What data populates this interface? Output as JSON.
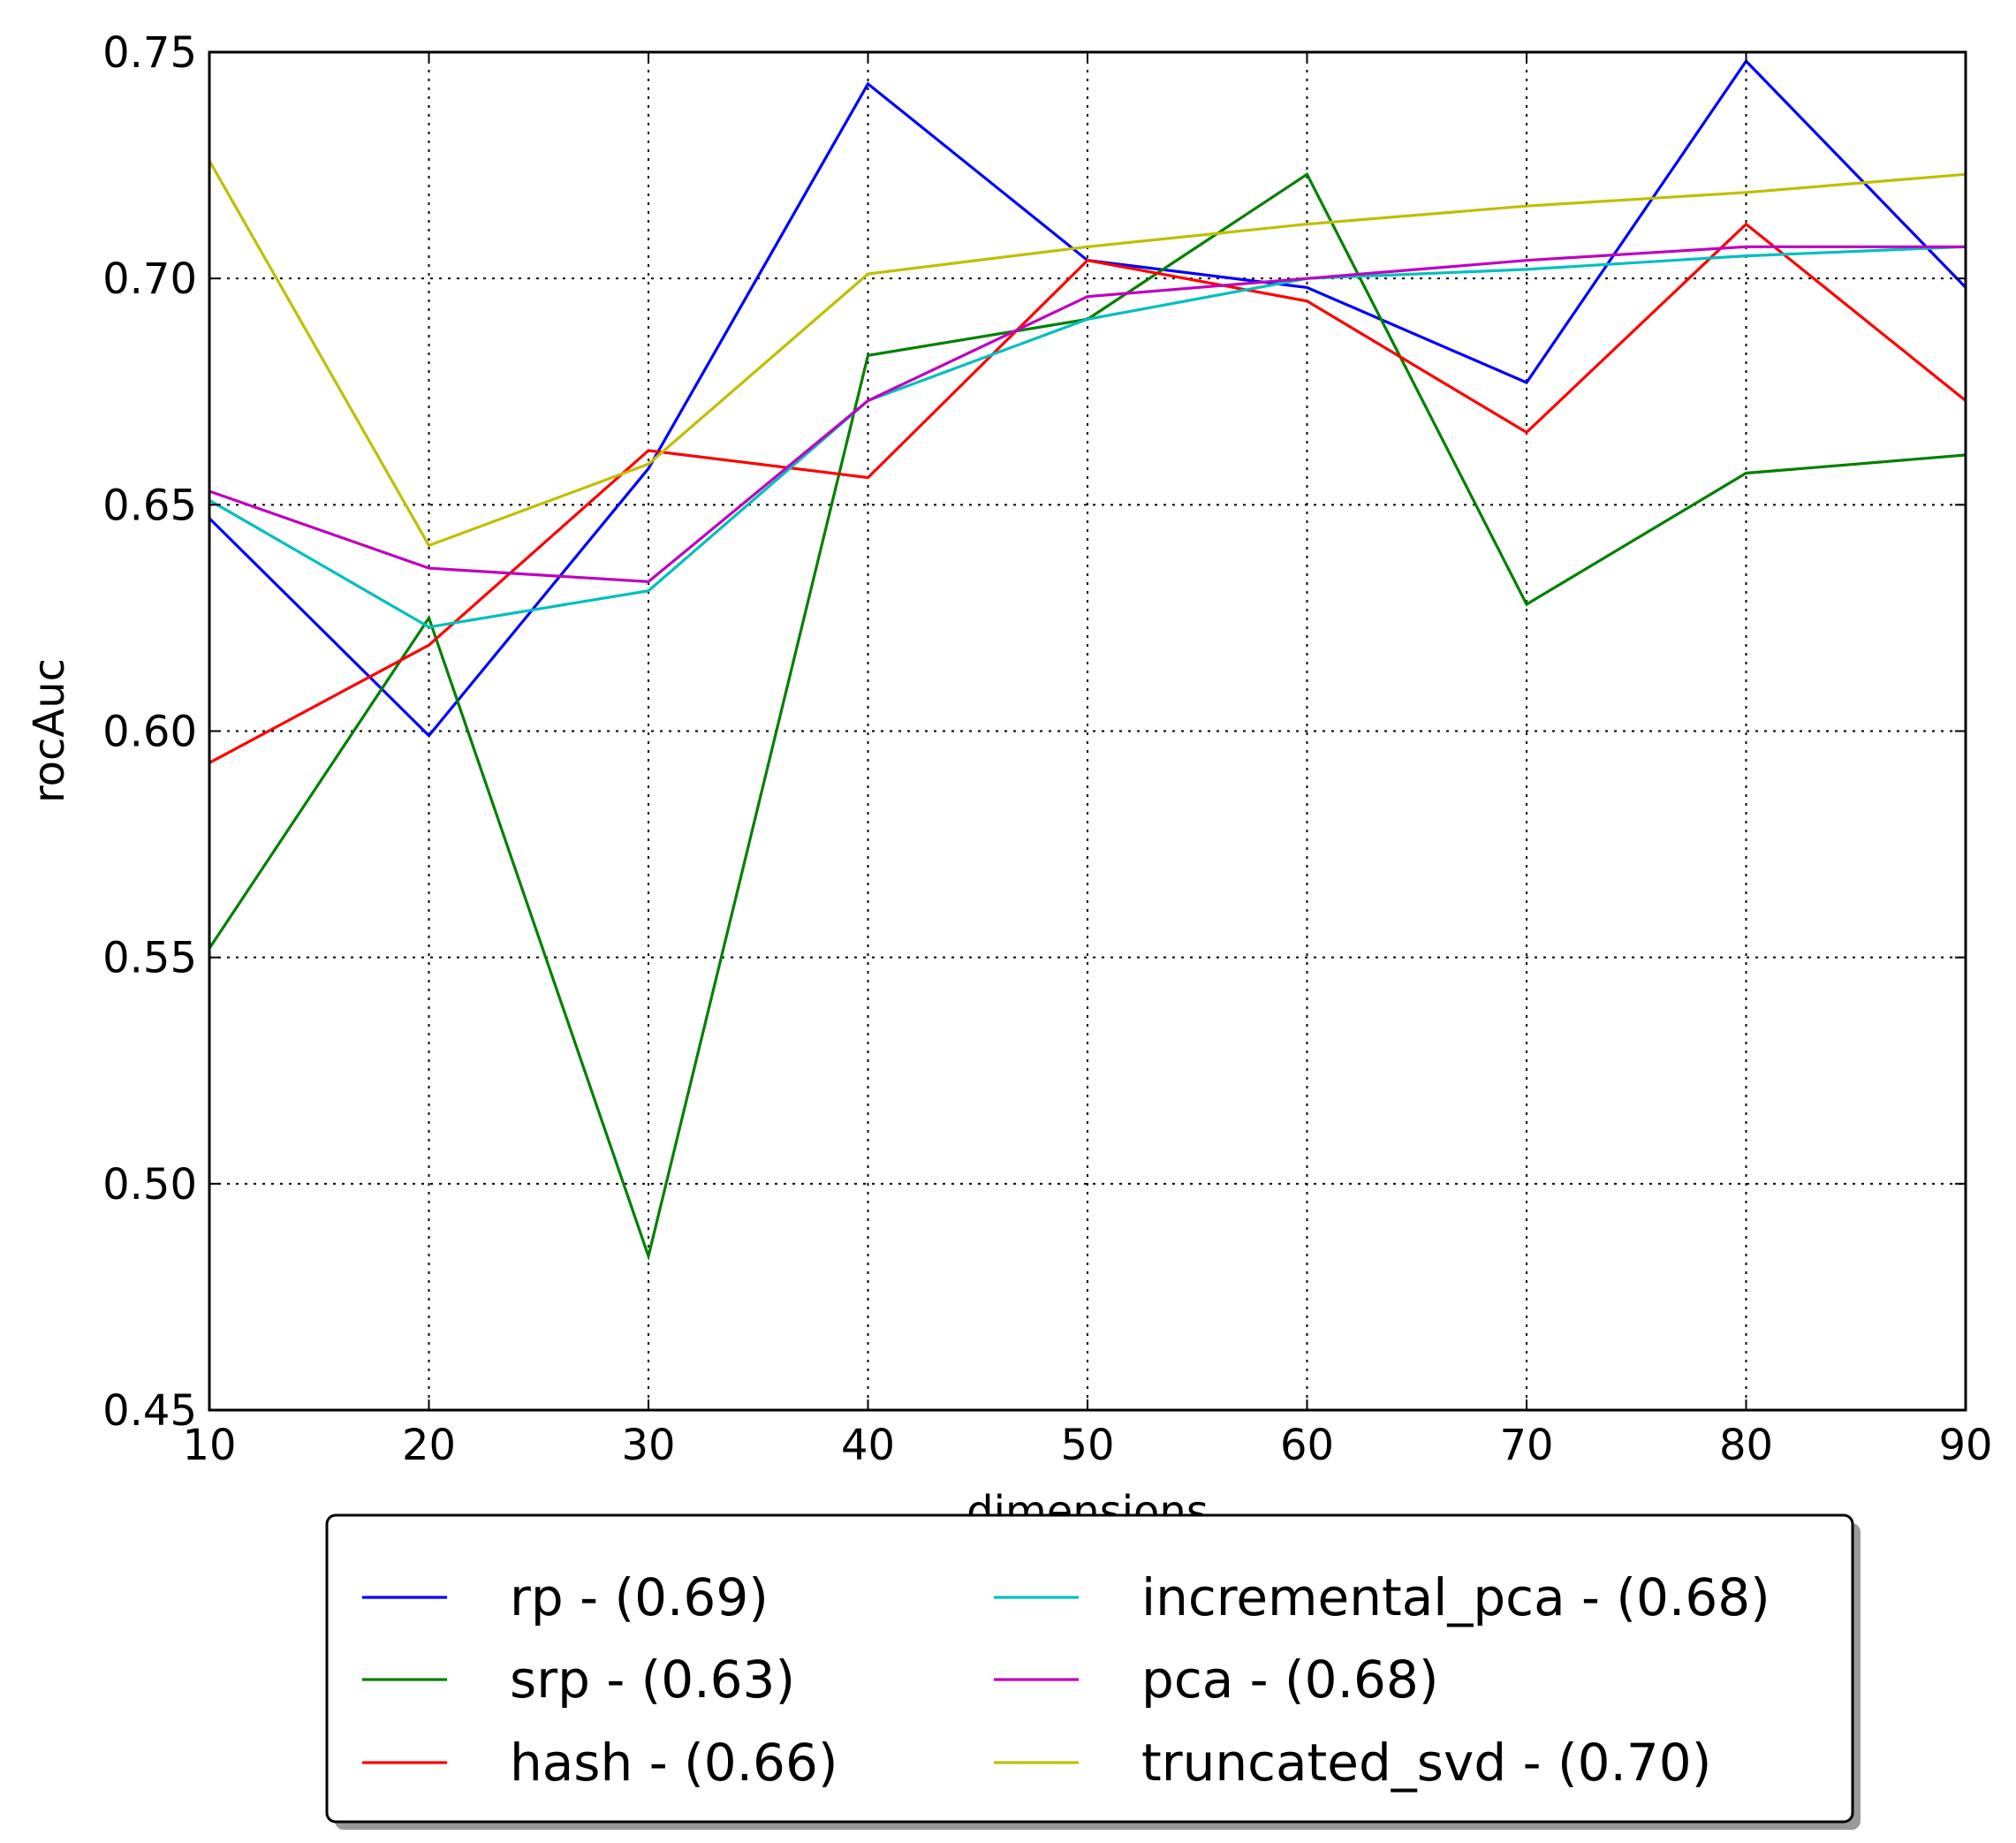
{
  "chart_data": {
    "type": "line",
    "xlabel": "dimensions",
    "ylabel": "rocAuc",
    "xlim": [
      10,
      90
    ],
    "ylim": [
      0.45,
      0.75
    ],
    "xticks": [
      10,
      20,
      30,
      40,
      50,
      60,
      70,
      80,
      90
    ],
    "xtick_labels": [
      "10",
      "20",
      "30",
      "40",
      "50",
      "60",
      "70",
      "80",
      "90"
    ],
    "yticks": [
      0.45,
      0.5,
      0.55,
      0.6,
      0.65,
      0.7,
      0.75
    ],
    "ytick_labels": [
      "0.45",
      "0.50",
      "0.55",
      "0.60",
      "0.65",
      "0.70",
      "0.75"
    ],
    "grid": true,
    "legend_position": "bottom-center, below axes, 2 columns",
    "x": [
      10,
      20,
      30,
      40,
      50,
      60,
      70,
      80,
      90
    ],
    "series": [
      {
        "name": "rp - (0.69)",
        "color": "#0000ff",
        "values": [
          0.647,
          0.599,
          0.658,
          0.743,
          0.704,
          0.698,
          0.677,
          0.748,
          0.698
        ]
      },
      {
        "name": "srp - (0.63)",
        "color": "#008000",
        "values": [
          0.552,
          0.625,
          0.484,
          0.683,
          0.691,
          0.723,
          0.628,
          0.657,
          0.661
        ]
      },
      {
        "name": "hash - (0.66)",
        "color": "#ff0000",
        "values": [
          0.593,
          0.619,
          0.662,
          0.656,
          0.704,
          0.695,
          0.666,
          0.712,
          0.673
        ]
      },
      {
        "name": "incremental_pca - (0.68)",
        "color": "#00bfbf",
        "values": [
          0.651,
          0.623,
          0.631,
          0.673,
          0.691,
          0.7,
          0.702,
          0.705,
          0.707
        ]
      },
      {
        "name": "pca - (0.68)",
        "color": "#bf00bf",
        "values": [
          0.653,
          0.636,
          0.633,
          0.673,
          0.696,
          0.7,
          0.704,
          0.707,
          0.707
        ]
      },
      {
        "name": "truncated_svd - (0.70)",
        "color": "#bfbf00",
        "values": [
          0.726,
          0.641,
          0.659,
          0.701,
          0.707,
          0.712,
          0.716,
          0.719,
          0.723
        ]
      }
    ]
  }
}
